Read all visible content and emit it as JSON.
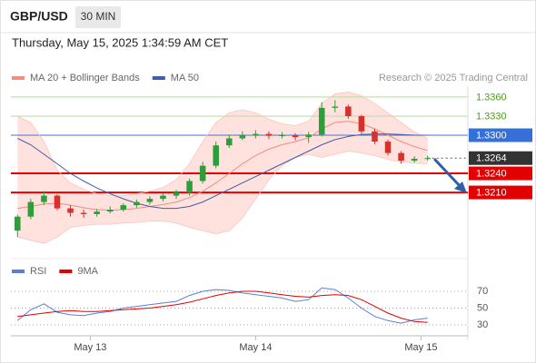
{
  "chart_data": [
    {
      "type": "candlestick",
      "title": "GBP/USD",
      "interval": "30 MIN",
      "subtitle": "Thursday, May 15, 2025 1:34:59 AM CET",
      "annotation": "Research © 2025 Trading Central",
      "up_color": "#2e9e3a",
      "down_color": "#d6312b",
      "xlim": [
        -0.5,
        31.5
      ],
      "ylim": [
        1.3106,
        1.3377
      ],
      "open": [
        1.315,
        1.3172,
        1.3195,
        1.3205,
        1.3185,
        1.3178,
        1.3176,
        1.318,
        1.3183,
        1.319,
        1.3195,
        1.32,
        1.3205,
        1.321,
        1.3228,
        1.3252,
        1.3284,
        1.3295,
        1.33,
        1.3302,
        1.3299,
        1.33,
        1.3297,
        1.3301,
        1.3343,
        1.3345,
        1.333,
        1.3306,
        1.329,
        1.3272,
        1.326,
        1.3263
      ],
      "high": [
        1.3175,
        1.32,
        1.3212,
        1.3207,
        1.319,
        1.3183,
        1.3184,
        1.3188,
        1.3193,
        1.3199,
        1.3204,
        1.3209,
        1.3214,
        1.3232,
        1.3258,
        1.329,
        1.3301,
        1.3306,
        1.3308,
        1.3306,
        1.3305,
        1.3303,
        1.3305,
        1.3352,
        1.3355,
        1.3348,
        1.3332,
        1.331,
        1.3293,
        1.3275,
        1.3267,
        1.3268
      ],
      "low": [
        1.314,
        1.3168,
        1.319,
        1.3182,
        1.3172,
        1.317,
        1.3172,
        1.3177,
        1.318,
        1.3186,
        1.3191,
        1.3196,
        1.32,
        1.3205,
        1.3224,
        1.3248,
        1.328,
        1.3292,
        1.3295,
        1.3294,
        1.3295,
        1.3292,
        1.3288,
        1.3298,
        1.3336,
        1.3326,
        1.3302,
        1.3286,
        1.3268,
        1.3255,
        1.3257,
        1.326
      ],
      "close": [
        1.3172,
        1.3195,
        1.3205,
        1.3185,
        1.3178,
        1.3176,
        1.318,
        1.3183,
        1.319,
        1.3195,
        1.32,
        1.3205,
        1.321,
        1.3228,
        1.3252,
        1.3284,
        1.3295,
        1.33,
        1.3302,
        1.3299,
        1.33,
        1.3297,
        1.3301,
        1.3343,
        1.3345,
        1.333,
        1.3306,
        1.329,
        1.3272,
        1.326,
        1.3263,
        1.3264
      ],
      "series": [
        {
          "name": "MA 20 + Bollinger Bands",
          "color": "#f28b82",
          "band_color": "#ffd9d6",
          "values": [
            1.3185,
            1.3188,
            1.3192,
            1.3193,
            1.319,
            1.3186,
            1.3183,
            1.3182,
            1.3183,
            1.3185,
            1.3188,
            1.3191,
            1.3195,
            1.3202,
            1.3212,
            1.3225,
            1.324,
            1.3255,
            1.3268,
            1.3278,
            1.3285,
            1.329,
            1.3296,
            1.331,
            1.332,
            1.3322,
            1.3318,
            1.331,
            1.33,
            1.329,
            1.3282,
            1.3276
          ],
          "upper": [
            1.333,
            1.332,
            1.329,
            1.3245,
            1.3225,
            1.3215,
            1.3208,
            1.3205,
            1.3205,
            1.3208,
            1.3212,
            1.3218,
            1.323,
            1.3255,
            1.329,
            1.332,
            1.3335,
            1.334,
            1.3335,
            1.3325,
            1.3318,
            1.3315,
            1.3322,
            1.335,
            1.3365,
            1.3368,
            1.3362,
            1.335,
            1.3335,
            1.332,
            1.3305,
            1.3295
          ],
          "lower": [
            1.314,
            1.3135,
            1.313,
            1.314,
            1.3155,
            1.3158,
            1.316,
            1.316,
            1.3162,
            1.3163,
            1.3165,
            1.3165,
            1.3162,
            1.3155,
            1.315,
            1.3145,
            1.315,
            1.317,
            1.32,
            1.323,
            1.3252,
            1.3265,
            1.327,
            1.3265,
            1.327,
            1.3275,
            1.3272,
            1.3268,
            1.3262,
            1.3258,
            1.3256,
            1.3255
          ]
        },
        {
          "name": "MA 50",
          "color": "#3d5fa8",
          "values": [
            1.3295,
            1.3285,
            1.327,
            1.3255,
            1.324,
            1.3228,
            1.3217,
            1.3208,
            1.32,
            1.3193,
            1.3188,
            1.3185,
            1.3185,
            1.3188,
            1.3195,
            1.3205,
            1.3215,
            1.3225,
            1.3235,
            1.3245,
            1.3255,
            1.3265,
            1.3275,
            1.3285,
            1.3293,
            1.3298,
            1.3301,
            1.3302,
            1.3302,
            1.3301,
            1.33,
            1.33
          ]
        }
      ],
      "levels": [
        {
          "value": 1.336,
          "label": "1.3360",
          "color": "#b7dba0",
          "text_color": "#4f9a1f",
          "style": "text"
        },
        {
          "value": 1.333,
          "label": "1.3330",
          "color": "#b7dba0",
          "text_color": "#4f9a1f",
          "style": "text"
        },
        {
          "value": 1.33,
          "label": "1.3300",
          "color": "#4a72c4",
          "text_color": "#ffffff",
          "box_color": "#3570d8",
          "style": "box"
        },
        {
          "value": 1.3264,
          "label": "1.3264",
          "color": "#555555",
          "text_color": "#ffffff",
          "box_color": "#333333",
          "style": "current"
        },
        {
          "value": 1.324,
          "label": "1.3240",
          "color": "#e30000",
          "text_color": "#ffffff",
          "box_color": "#e30000",
          "style": "box"
        },
        {
          "value": 1.321,
          "label": "1.3210",
          "color": "#e30000",
          "text_color": "#ffffff",
          "box_color": "#e30000",
          "style": "box"
        }
      ]
    },
    {
      "type": "line",
      "xlim": [
        -0.5,
        31.5
      ],
      "xticks": [
        {
          "value": 5.5,
          "label": "May 13"
        },
        {
          "value": 18,
          "label": "May 14"
        },
        {
          "value": 30.5,
          "label": "May 15"
        }
      ],
      "ylim": [
        17,
        84
      ],
      "yticks": [
        70,
        50,
        30
      ],
      "grid": true,
      "series": [
        {
          "name": "RSI",
          "color": "#5b7fd6",
          "values": [
            35,
            48,
            55,
            45,
            42,
            41,
            44,
            46,
            50,
            52,
            54,
            56,
            58,
            65,
            70,
            72,
            71,
            68,
            66,
            64,
            62,
            58,
            60,
            74,
            72,
            62,
            50,
            40,
            35,
            32,
            36,
            38
          ]
        },
        {
          "name": "9MA",
          "color": "#e30000",
          "values": [
            40,
            42,
            44,
            46,
            47,
            46,
            46,
            47,
            48,
            49,
            50,
            52,
            54,
            57,
            61,
            65,
            68,
            70,
            70,
            68,
            66,
            64,
            63,
            65,
            66,
            65,
            60,
            52,
            44,
            38,
            34,
            33
          ]
        }
      ]
    }
  ]
}
